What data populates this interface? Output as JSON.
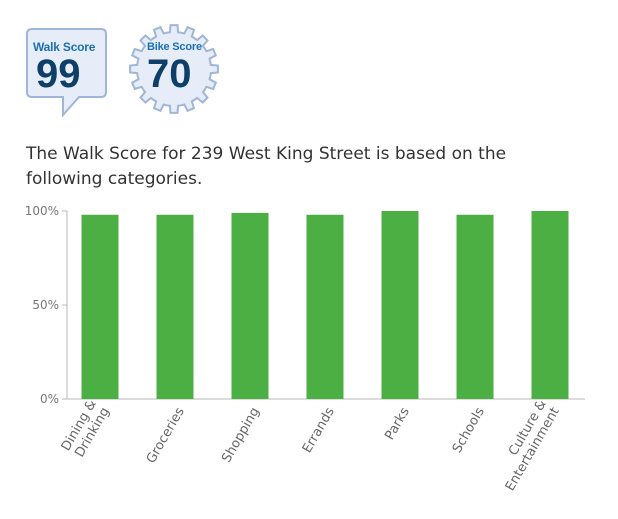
{
  "walk_badge": {
    "label": "Walk Score",
    "score": "99"
  },
  "bike_badge": {
    "label": "Bike Score",
    "score": "70"
  },
  "intro_text": "The Walk Score for 239 West King Street is based on the following categories.",
  "colors": {
    "bar": "#4caf44",
    "badge_fill": "#e7edf8",
    "badge_stroke": "#9fb6d8",
    "score_text": "#0e3f66",
    "label_text": "#1a6fb6"
  },
  "chart_data": {
    "type": "bar",
    "categories": [
      [
        "Dining &",
        "Drinking"
      ],
      [
        "Groceries"
      ],
      [
        "Shopping"
      ],
      [
        "Errands"
      ],
      [
        "Parks"
      ],
      [
        "Schools"
      ],
      [
        "Culture &",
        "Entertainment"
      ]
    ],
    "values": [
      98,
      98,
      99,
      98,
      100,
      98,
      100
    ],
    "ylim": [
      0,
      100
    ],
    "yticks": [
      {
        "value": 100,
        "label": "100%"
      },
      {
        "value": 50,
        "label": "50%"
      },
      {
        "value": 0,
        "label": "0%"
      }
    ],
    "grid": false
  }
}
